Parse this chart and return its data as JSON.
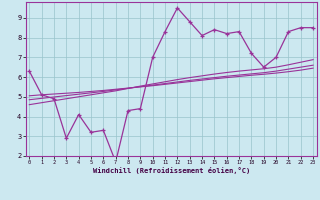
{
  "xlabel": "Windchill (Refroidissement éolien,°C)",
  "background_color": "#cce8f0",
  "line_color": "#993399",
  "grid_color": "#99c4cc",
  "x_data": [
    0,
    1,
    2,
    3,
    4,
    5,
    6,
    7,
    8,
    9,
    10,
    11,
    12,
    13,
    14,
    15,
    16,
    17,
    18,
    19,
    20,
    21,
    22,
    23
  ],
  "y_main": [
    6.3,
    5.1,
    4.9,
    2.9,
    4.1,
    3.2,
    3.3,
    1.7,
    4.3,
    4.4,
    7.0,
    8.3,
    9.5,
    8.8,
    8.1,
    8.4,
    8.2,
    8.3,
    7.2,
    6.5,
    7.0,
    8.3,
    8.5,
    8.5
  ],
  "y_reg1": [
    5.05,
    5.1,
    5.14,
    5.18,
    5.22,
    5.27,
    5.32,
    5.38,
    5.44,
    5.5,
    5.56,
    5.63,
    5.7,
    5.77,
    5.84,
    5.91,
    5.97,
    6.03,
    6.09,
    6.14,
    6.2,
    6.27,
    6.35,
    6.45
  ],
  "y_reg2": [
    4.85,
    4.92,
    4.99,
    5.06,
    5.13,
    5.2,
    5.27,
    5.35,
    5.43,
    5.51,
    5.59,
    5.67,
    5.75,
    5.83,
    5.9,
    5.97,
    6.04,
    6.1,
    6.16,
    6.22,
    6.3,
    6.4,
    6.5,
    6.6
  ],
  "y_reg3": [
    4.6,
    4.7,
    4.8,
    4.9,
    5.0,
    5.1,
    5.2,
    5.3,
    5.42,
    5.54,
    5.65,
    5.76,
    5.87,
    5.97,
    6.06,
    6.15,
    6.23,
    6.3,
    6.36,
    6.42,
    6.5,
    6.62,
    6.75,
    6.88
  ],
  "ylim_min": 2.0,
  "ylim_max": 9.8,
  "xlim_min": -0.3,
  "xlim_max": 23.3,
  "yticks": [
    2,
    3,
    4,
    5,
    6,
    7,
    8,
    9
  ],
  "xticks": [
    0,
    1,
    2,
    3,
    4,
    5,
    6,
    7,
    8,
    9,
    10,
    11,
    12,
    13,
    14,
    15,
    16,
    17,
    18,
    19,
    20,
    21,
    22,
    23
  ],
  "xlabel_color": "#440044",
  "tick_color": "#220022",
  "spine_color": "#993399"
}
